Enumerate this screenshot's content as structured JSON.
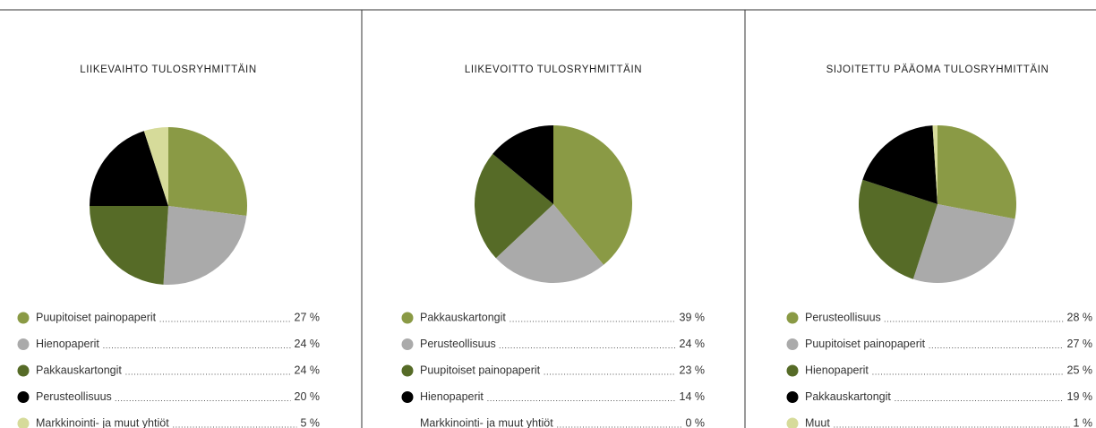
{
  "chart_data": [
    {
      "type": "pie",
      "title": "LIIKEVAIHTO TULOSRYHMITTÄIN",
      "categories": [
        "Puupitoiset painopaperit",
        "Hienopaperit",
        "Pakkauskartongit",
        "Perusteollisuus",
        "Markkinointi- ja muut yhtiöt"
      ],
      "values": [
        27,
        24,
        24,
        20,
        5
      ],
      "value_labels": [
        "27 %",
        "24 %",
        "24 %",
        "20 %",
        "5 %"
      ],
      "colors": [
        "#8a9a45",
        "#aaaaaa",
        "#566b27",
        "#000000",
        "#d6db9a"
      ]
    },
    {
      "type": "pie",
      "title": "LIIKEVOITTO TULOSRYHMITTÄIN",
      "categories": [
        "Pakkauskartongit",
        "Perusteollisuus",
        "Puupitoiset painopaperit",
        "Hienopaperit",
        "Markkinointi- ja muut yhtiöt"
      ],
      "values": [
        39,
        24,
        23,
        14,
        0
      ],
      "value_labels": [
        "39 %",
        "24 %",
        "23 %",
        "14 %",
        "0 %"
      ],
      "colors": [
        "#8a9a45",
        "#aaaaaa",
        "#566b27",
        "#000000",
        null
      ]
    },
    {
      "type": "pie",
      "title": "SIJOITETTU PÄÄOMA TULOSRYHMITTÄIN",
      "categories": [
        "Perusteollisuus",
        "Puupitoiset painopaperit",
        "Hienopaperit",
        "Pakkauskartongit",
        "Muut"
      ],
      "values": [
        28,
        27,
        25,
        19,
        1
      ],
      "value_labels": [
        "28 %",
        "27 %",
        "25 %",
        "19 %",
        "1 %"
      ],
      "colors": [
        "#8a9a45",
        "#aaaaaa",
        "#566b27",
        "#000000",
        "#d6db9a"
      ]
    }
  ]
}
